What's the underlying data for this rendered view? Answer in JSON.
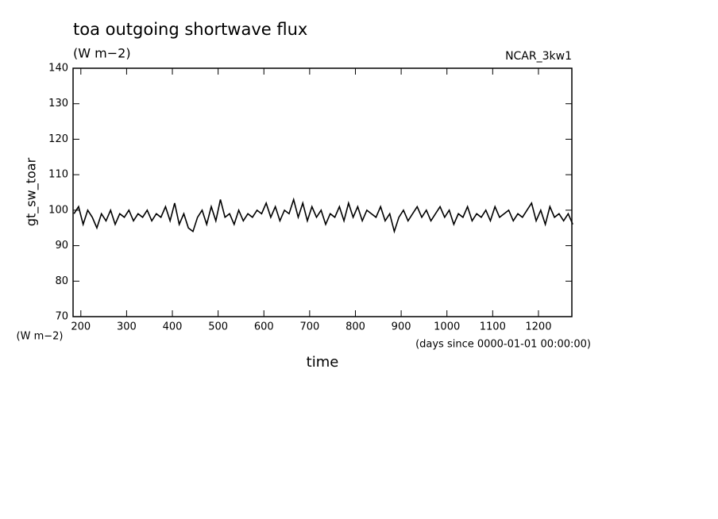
{
  "chart_data": {
    "type": "line",
    "title": "toa outgoing shortwave flux",
    "subtitle": "(W m−2)",
    "run_label": "NCAR_3kw1",
    "y_label": "gt_sw_toar",
    "y_unit": "(W m−2)",
    "x_label": "time",
    "x_unit": "(days since 0000-01-01 00:00:00)",
    "x": [
      185,
      195,
      205,
      215,
      225,
      235,
      245,
      255,
      265,
      275,
      285,
      295,
      305,
      315,
      325,
      335,
      345,
      355,
      365,
      375,
      385,
      395,
      405,
      415,
      425,
      435,
      445,
      455,
      465,
      475,
      485,
      495,
      505,
      515,
      525,
      535,
      545,
      555,
      565,
      575,
      585,
      595,
      605,
      615,
      625,
      635,
      645,
      655,
      665,
      675,
      685,
      695,
      705,
      715,
      725,
      735,
      745,
      755,
      765,
      775,
      785,
      795,
      805,
      815,
      825,
      835,
      845,
      855,
      865,
      875,
      885,
      895,
      905,
      915,
      925,
      935,
      945,
      955,
      965,
      975,
      985,
      995,
      1005,
      1015,
      1025,
      1035,
      1045,
      1055,
      1065,
      1075,
      1085,
      1095,
      1105,
      1115,
      1125,
      1135,
      1145,
      1155,
      1165,
      1175,
      1185,
      1195,
      1205,
      1215,
      1225,
      1235,
      1245,
      1255,
      1265,
      1275
    ],
    "series": [
      {
        "name": "gt_sw_toar",
        "color": "#000000",
        "values": [
          99,
          101,
          96,
          100,
          98,
          95,
          99,
          97,
          100,
          96,
          99,
          98,
          100,
          97,
          99,
          98,
          100,
          97,
          99,
          98,
          101,
          97,
          102,
          96,
          99,
          95,
          94,
          98,
          100,
          96,
          101,
          97,
          103,
          98,
          99,
          96,
          100,
          97,
          99,
          98,
          100,
          99,
          102,
          98,
          101,
          97,
          100,
          99,
          103,
          98,
          102,
          97,
          101,
          98,
          100,
          96,
          99,
          98,
          101,
          97,
          102,
          98,
          101,
          97,
          100,
          99,
          98,
          101,
          97,
          99,
          94,
          98,
          100,
          97,
          99,
          101,
          98,
          100,
          97,
          99,
          101,
          98,
          100,
          96,
          99,
          98,
          101,
          97,
          99,
          98,
          100,
          97,
          101,
          98,
          99,
          100,
          97,
          99,
          98,
          100,
          102,
          97,
          100,
          96,
          101,
          98,
          99,
          97,
          99,
          96
        ]
      }
    ],
    "xlim": [
      183,
      1273
    ],
    "ylim": [
      70,
      140
    ],
    "xticks": [
      200,
      300,
      400,
      500,
      600,
      700,
      800,
      900,
      1000,
      1100,
      1200
    ],
    "yticks": [
      70,
      80,
      90,
      100,
      110,
      120,
      130,
      140
    ]
  }
}
